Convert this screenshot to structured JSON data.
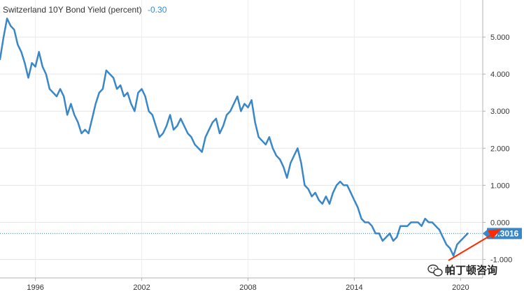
{
  "chart_data": {
    "type": "line",
    "title": "Switzerland 10Y Bond Yield (percent)",
    "title_value": "-0.30",
    "last_value_label": "-0.3016",
    "last_value": -0.3016,
    "ylim": [
      -1.5,
      6.0
    ],
    "y_ticks": [
      5.0,
      4.0,
      3.0,
      2.0,
      1.0,
      0.0,
      -1.0
    ],
    "y_tick_labels": [
      "5.000",
      "4.000",
      "3.000",
      "2.000",
      "1.000",
      "0.000",
      "-1.000"
    ],
    "xlim": [
      1994.0,
      2021.25
    ],
    "x_ticks": [
      1996,
      2002,
      2008,
      2014,
      2020
    ],
    "x_tick_labels": [
      "1996",
      "2002",
      "2008",
      "2014",
      "2020"
    ],
    "grid": true,
    "line_color": "#3a87c8",
    "badge_color": "#3a87c8",
    "series": [
      {
        "x": [
          1994.0,
          1994.2,
          1994.4,
          1994.6,
          1994.8,
          1995.0,
          1995.2,
          1995.4,
          1995.6,
          1995.8,
          1996.0,
          1996.2,
          1996.4,
          1996.6,
          1996.8,
          1997.0,
          1997.2,
          1997.4,
          1997.6,
          1997.8,
          1998.0,
          1998.2,
          1998.4,
          1998.6,
          1998.8,
          1999.0,
          1999.2,
          1999.4,
          1999.6,
          1999.8,
          2000.0,
          2000.2,
          2000.4,
          2000.6,
          2000.8,
          2001.0,
          2001.2,
          2001.4,
          2001.6,
          2001.8,
          2002.0,
          2002.2,
          2002.4,
          2002.6,
          2002.8,
          2003.0,
          2003.2,
          2003.4,
          2003.6,
          2003.8,
          2004.0,
          2004.2,
          2004.4,
          2004.6,
          2004.8,
          2005.0,
          2005.2,
          2005.4,
          2005.6,
          2005.8,
          2006.0,
          2006.2,
          2006.4,
          2006.6,
          2006.8,
          2007.0,
          2007.2,
          2007.4,
          2007.6,
          2007.8,
          2008.0,
          2008.2,
          2008.4,
          2008.6,
          2008.8,
          2009.0,
          2009.2,
          2009.4,
          2009.6,
          2009.8,
          2010.0,
          2010.2,
          2010.4,
          2010.6,
          2010.8,
          2011.0,
          2011.2,
          2011.4,
          2011.6,
          2011.8,
          2012.0,
          2012.2,
          2012.4,
          2012.6,
          2012.8,
          2013.0,
          2013.2,
          2013.4,
          2013.6,
          2013.8,
          2014.0,
          2014.2,
          2014.4,
          2014.6,
          2014.8,
          2015.0,
          2015.2,
          2015.4,
          2015.6,
          2015.8,
          2016.0,
          2016.2,
          2016.4,
          2016.6,
          2016.8,
          2017.0,
          2017.2,
          2017.4,
          2017.6,
          2017.8,
          2018.0,
          2018.2,
          2018.4,
          2018.6,
          2018.8,
          2019.0,
          2019.2,
          2019.4,
          2019.6,
          2019.8,
          2020.0,
          2020.2,
          2020.4
        ],
        "y": [
          4.4,
          5.0,
          5.5,
          5.3,
          5.2,
          4.8,
          4.6,
          4.3,
          3.9,
          4.3,
          4.2,
          4.6,
          4.2,
          4.0,
          3.6,
          3.5,
          3.4,
          3.6,
          3.4,
          2.9,
          3.2,
          2.9,
          2.7,
          2.4,
          2.5,
          2.4,
          2.8,
          3.2,
          3.5,
          3.6,
          4.1,
          4.0,
          3.9,
          3.6,
          3.7,
          3.4,
          3.5,
          3.2,
          3.0,
          3.5,
          3.6,
          3.4,
          3.0,
          2.9,
          2.6,
          2.3,
          2.4,
          2.6,
          2.9,
          2.5,
          2.6,
          2.8,
          2.6,
          2.4,
          2.3,
          2.1,
          2.0,
          1.9,
          2.3,
          2.5,
          2.7,
          2.8,
          2.4,
          2.6,
          2.9,
          3.0,
          3.2,
          3.4,
          3.0,
          3.2,
          3.1,
          3.3,
          2.7,
          2.3,
          2.2,
          2.1,
          2.3,
          2.0,
          1.8,
          1.7,
          1.5,
          1.2,
          1.6,
          1.8,
          2.0,
          1.6,
          1.0,
          0.9,
          0.7,
          0.8,
          0.6,
          0.5,
          0.7,
          0.5,
          0.8,
          1.0,
          1.1,
          1.0,
          1.0,
          0.8,
          0.6,
          0.4,
          0.1,
          0.0,
          0.0,
          -0.1,
          -0.3,
          -0.3,
          -0.5,
          -0.4,
          -0.3,
          -0.5,
          -0.4,
          -0.1,
          -0.1,
          -0.1,
          0.0,
          0.0,
          0.0,
          -0.1,
          0.1,
          0.0,
          0.0,
          -0.1,
          -0.2,
          -0.4,
          -0.6,
          -0.7,
          -0.9,
          -0.6,
          -0.5,
          -0.4,
          -0.3
        ]
      }
    ]
  },
  "watermark": {
    "icon": "wechat-icon",
    "text": "帕丁顿咨询"
  },
  "annotation": {
    "arrow_color": "#ff2a00"
  }
}
